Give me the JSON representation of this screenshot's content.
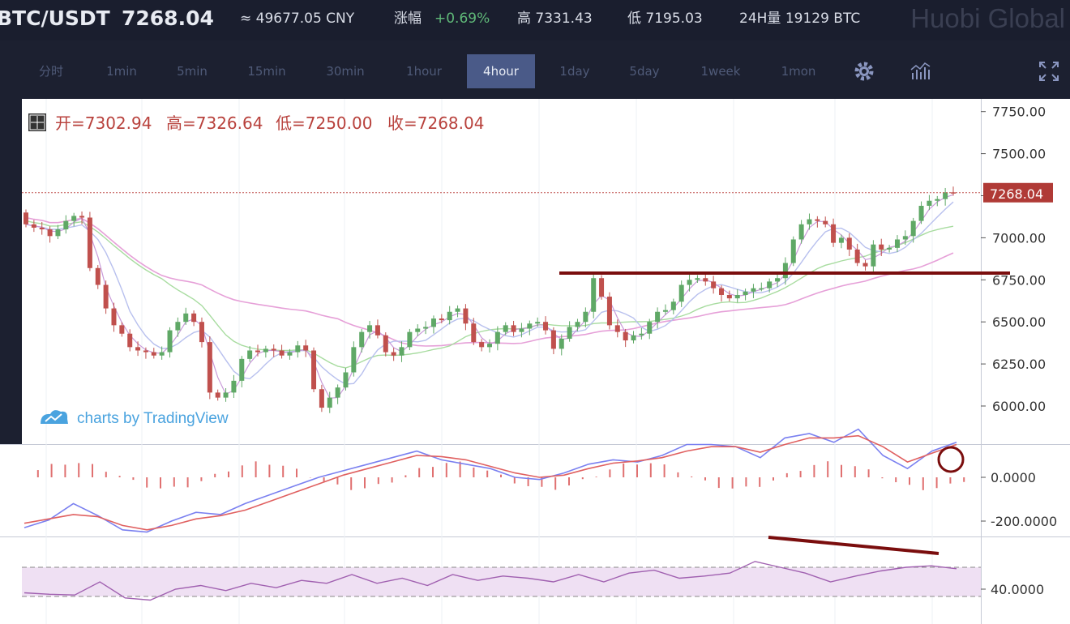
{
  "header": {
    "pair": "BTC/USDT",
    "price": "7268.04",
    "cny": "≈ 49677.05 CNY",
    "change_label": "涨幅",
    "change_value": "+0.69%",
    "high": "高 7331.43",
    "low": "低 7195.03",
    "volume": "24H量 19129 BTC",
    "brand": "Huobi Global"
  },
  "toolbar": {
    "intervals": [
      "分时",
      "1min",
      "5min",
      "15min",
      "30min",
      "1hour",
      "4hour",
      "1day",
      "5day",
      "1week",
      "1mon"
    ],
    "active": "4hour",
    "icons": [
      "gear-icon",
      "indicators-icon",
      "fullscreen-icon"
    ]
  },
  "legend": {
    "open": "开=7302.94",
    "high": "高=7326.64",
    "low": "低=7250.00",
    "close": "收=7268.04"
  },
  "watermark": "charts by TradingView",
  "colors": {
    "up": "#5fa866",
    "down": "#c0504d",
    "accent": "#4a5a88",
    "current": "#b03a36",
    "annotation": "#7a0d0d"
  },
  "chart_data": [
    {
      "type": "candlestick",
      "title": "BTC/USDT 4hour",
      "yticks": [
        6000,
        6250,
        6500,
        6750,
        7000,
        7250,
        7500,
        7750
      ],
      "ytick_labels": [
        "6000.00",
        "6250.00",
        "6500.00",
        "6750.00",
        "7000.00",
        "7250.00",
        "7500.00",
        "7750.00"
      ],
      "ylim": [
        5850,
        7790
      ],
      "last_price_label": "7268.04",
      "last_price": 7268.04,
      "close": [
        7080,
        7060,
        7050,
        7010,
        7050,
        7100,
        7130,
        7120,
        6820,
        6720,
        6580,
        6480,
        6430,
        6350,
        6330,
        6320,
        6300,
        6320,
        6450,
        6500,
        6550,
        6500,
        6380,
        6080,
        6050,
        6080,
        6150,
        6280,
        6330,
        6320,
        6340,
        6330,
        6300,
        6320,
        6360,
        6330,
        6100,
        5990,
        6050,
        6110,
        6200,
        6350,
        6440,
        6480,
        6420,
        6320,
        6300,
        6350,
        6440,
        6460,
        6470,
        6520,
        6510,
        6560,
        6580,
        6490,
        6380,
        6350,
        6370,
        6440,
        6480,
        6440,
        6460,
        6490,
        6500,
        6450,
        6340,
        6400,
        6470,
        6500,
        6560,
        6760,
        6650,
        6480,
        6440,
        6390,
        6420,
        6430,
        6500,
        6560,
        6570,
        6620,
        6720,
        6750,
        6760,
        6740,
        6700,
        6660,
        6640,
        6660,
        6680,
        6700,
        6700,
        6740,
        6760,
        6850,
        6990,
        7080,
        7110,
        7100,
        7080,
        6970,
        7000,
        6930,
        6850,
        6830,
        6960,
        6930,
        6940,
        6990,
        7010,
        7100,
        7190,
        7220,
        7230,
        7270,
        7268
      ],
      "trend_line": {
        "from_price": 6790,
        "to_price": 6790
      },
      "reference_line_price": 7268.04
    },
    {
      "type": "line",
      "title": "MACD",
      "yticks": [
        0,
        -200
      ],
      "ytick_labels": [
        "0.0000",
        "-200.0000"
      ],
      "series": [
        {
          "color": "#7a80f0",
          "values": [
            -230,
            -195,
            -120,
            -175,
            -240,
            -250,
            -200,
            -160,
            -170,
            -120,
            -80,
            -40,
            0,
            30,
            60,
            90,
            120,
            80,
            60,
            40,
            0,
            -10,
            20,
            60,
            80,
            70,
            100,
            150,
            150,
            140,
            90,
            180,
            200,
            160,
            220,
            100,
            40,
            120,
            160
          ]
        },
        {
          "color": "#e06060",
          "values": [
            -210,
            -190,
            -170,
            -180,
            -220,
            -240,
            -220,
            -190,
            -175,
            -150,
            -110,
            -70,
            -30,
            10,
            40,
            70,
            100,
            95,
            80,
            50,
            20,
            0,
            10,
            40,
            65,
            75,
            90,
            120,
            140,
            140,
            115,
            150,
            180,
            180,
            190,
            140,
            70,
            110,
            150
          ]
        }
      ],
      "histogram": "red-green bars around zero"
    },
    {
      "type": "line",
      "title": "RSI",
      "yticks": [
        40
      ],
      "ytick_labels": [
        "40.0000"
      ],
      "series": [
        {
          "color": "#a060b0",
          "values": [
            35,
            33,
            32,
            50,
            28,
            25,
            40,
            45,
            38,
            48,
            42,
            52,
            48,
            60,
            48,
            55,
            45,
            60,
            52,
            58,
            55,
            50,
            60,
            50,
            62,
            66,
            55,
            58,
            62,
            78,
            70,
            62,
            50,
            58,
            65,
            70,
            72,
            68
          ]
        }
      ],
      "bands": [
        70,
        30
      ],
      "trend_line": "descending"
    }
  ]
}
